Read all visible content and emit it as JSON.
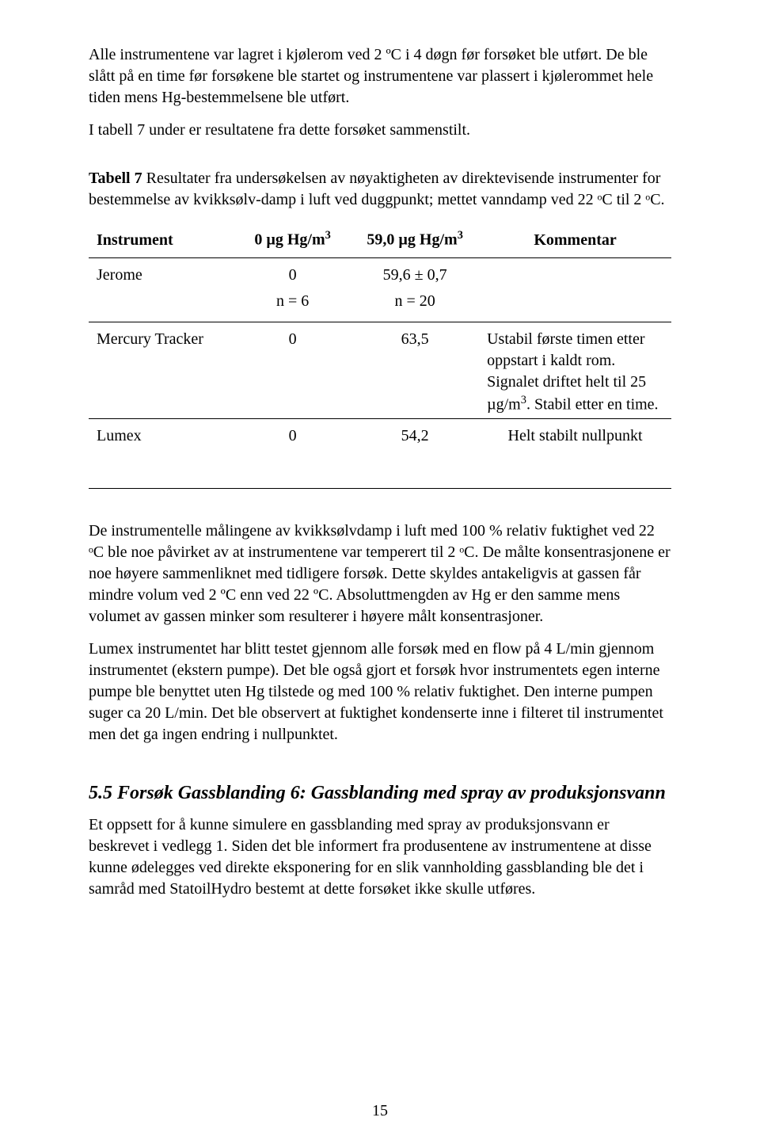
{
  "paragraphs": {
    "p1": "Alle instrumentene var lagret i kjølerom ved 2 ºC i 4 døgn før forsøket ble utført. De ble slått på en time før forsøkene ble startet og instrumentene var plassert i kjølerommet hele tiden mens Hg-bestemmelsene ble utført.",
    "p2": "I tabell 7 under er resultatene fra dette forsøket sammenstilt.",
    "p3": "De instrumentelle målingene av kvikksølvdamp i luft med 100 % relativ fuktighet ved 22 ᵒC ble noe påvirket av at instrumentene var temperert til 2 ᵒC. De målte konsentrasjonene er noe høyere sammenliknet med tidligere forsøk. Dette skyldes antakeligvis at gassen får mindre volum ved 2 ºC enn ved 22 ºC. Absoluttmengden av Hg er den samme mens volumet av gassen minker som resulterer i høyere målt konsentrasjoner.",
    "p4": "Lumex instrumentet har blitt testet gjennom alle forsøk med en flow på 4 L/min gjennom instrumentet (ekstern pumpe). Det ble også gjort et forsøk hvor instrumentets egen interne pumpe ble benyttet uten Hg tilstede og med 100 % relativ fuktighet. Den interne pumpen suger ca 20 L/min. Det ble observert at fuktighet kondenserte inne i filteret til instrumentet men det ga ingen endring i nullpunktet.",
    "p5": "Et oppsett for å kunne simulere en gassblanding med spray av produksjonsvann er beskrevet i vedlegg 1. Siden det ble informert fra produsentene av instrumentene at disse kunne ødelegges ved direkte eksponering for en slik vannholding gassblanding ble det i samråd med StatoilHydro bestemt at dette forsøket ikke skulle utføres."
  },
  "tableCaption": {
    "label": "Tabell 7",
    "text": " Resultater fra undersøkelsen av nøyaktigheten av direktevisende instrumenter for bestemmelse av kvikksølv-damp i luft ved duggpunkt; mettet vanndamp ved 22 ᵒC til 2 ᵒC."
  },
  "table": {
    "headers": {
      "c1": "Instrument",
      "c2_html": "0 µg Hg/m<sup>3</sup>",
      "c3_html": "59,0 µg Hg/m<sup>3</sup>",
      "c4": "Kommentar"
    },
    "rows": [
      {
        "c1": "Jerome",
        "c2": "0",
        "c3": "59,6 ± 0,7",
        "c4": "",
        "sub_c2": "n = 6",
        "sub_c3": "n = 20"
      },
      {
        "c1": "Mercury Tracker",
        "c2": "0",
        "c3": "63,5",
        "c4_html": "Ustabil første timen etter oppstart i kaldt rom. Signalet driftet helt til 25 µg/m<sup>3</sup>. Stabil etter en time."
      },
      {
        "c1": "Lumex",
        "c2": "0",
        "c3": "54,2",
        "c4": "Helt stabilt nullpunkt"
      }
    ]
  },
  "sectionHeading": "5.5 Forsøk Gassblanding 6: Gassblanding med spray av produksjonsvann",
  "pageNumber": "15"
}
